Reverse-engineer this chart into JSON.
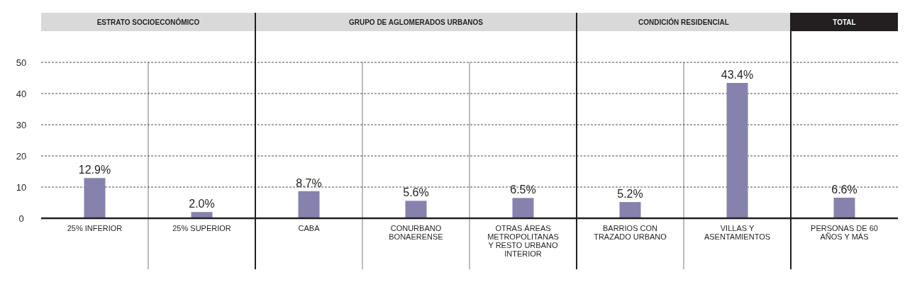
{
  "chart_data": {
    "type": "bar",
    "annotations": [
      "ESTRATO SOCIOECONÓMICO",
      "GRUPO DE AGLOMERADOS URBANOS",
      "CONDICIÓN RESIDENCIAL",
      "TOTAL"
    ],
    "categories": [
      "25% INFERIOR",
      "25% SUPERIOR",
      "CABA",
      "CONURBANO BONAERENSE",
      "OTRAS ÁREAS METROPOLITANAS Y RESTO URBANO INTERIOR",
      "BARRIOS CON TRAZADO URBANO",
      "VILLAS Y ASENTAMIENTOS",
      "PERSONAS DE 60 AÑOS Y MÁS"
    ],
    "values": [
      12.9,
      2.0,
      8.7,
      5.6,
      6.5,
      5.2,
      43.4,
      6.6
    ],
    "value_labels": [
      "12.9%",
      "2.0%",
      "8.7%",
      "5.6%",
      "6.5%",
      "5.2%",
      "43.4%",
      "6.6%"
    ],
    "color": "#8682ad",
    "ylim": [
      0,
      50
    ],
    "yticks": [
      0,
      10,
      20,
      30,
      40,
      50
    ],
    "grid": "y"
  }
}
